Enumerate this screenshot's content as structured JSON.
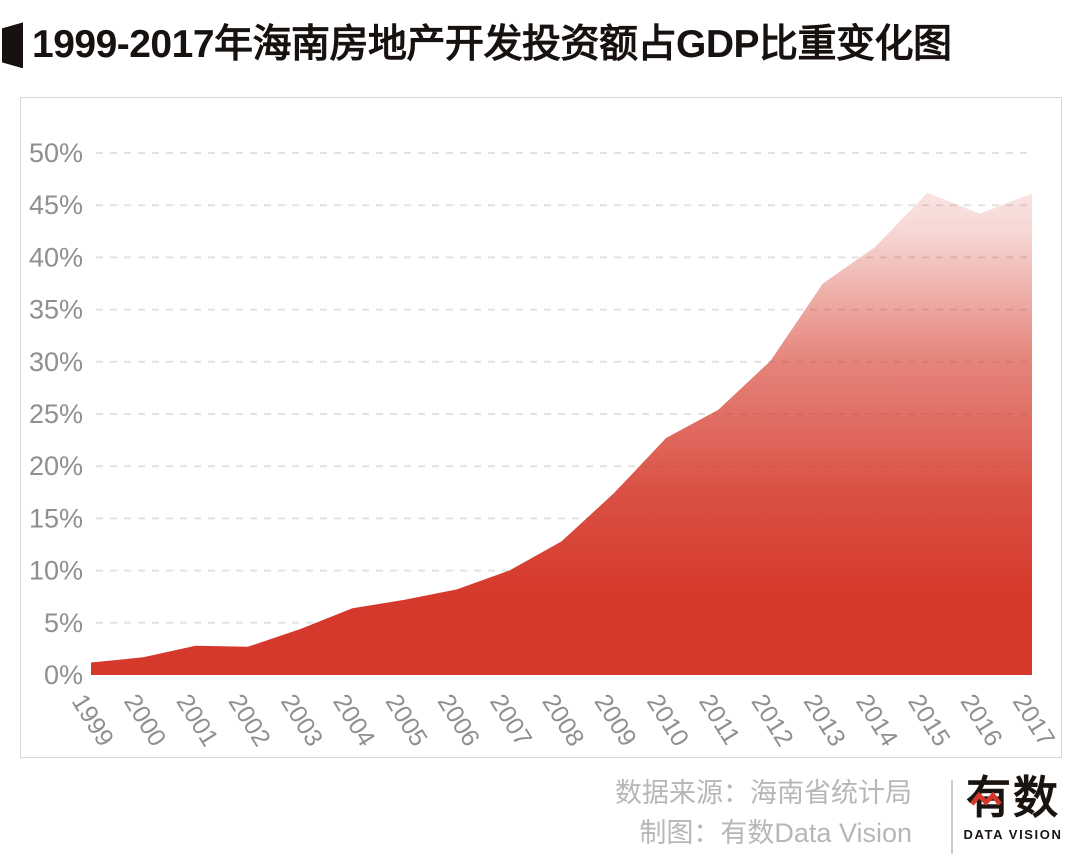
{
  "header": {
    "title": "1999-2017年海南房地产开发投资额占GDP比重变化图"
  },
  "chart_data": {
    "type": "area",
    "title": "1999-2017年海南房地产开发投资额占GDP比重变化图",
    "x": [
      "1999",
      "2000",
      "2001",
      "2002",
      "2003",
      "2004",
      "2005",
      "2006",
      "2007",
      "2008",
      "2009",
      "2010",
      "2011",
      "2012",
      "2013",
      "2014",
      "2015",
      "2016",
      "2017"
    ],
    "series": [
      {
        "name": "房地产开发投资额占GDP比重",
        "values": [
          1.2,
          1.7,
          2.8,
          2.7,
          4.4,
          6.4,
          7.2,
          8.2,
          10.0,
          12.8,
          17.4,
          22.7,
          25.4,
          30.1,
          37.5,
          41.0,
          46.2,
          44.2,
          46.1
        ]
      }
    ],
    "xlabel": "",
    "ylabel": "",
    "ylim": [
      0,
      50
    ],
    "yticks": [
      "0%",
      "5%",
      "10%",
      "15%",
      "20%",
      "25%",
      "30%",
      "35%",
      "40%",
      "45%",
      "50%"
    ],
    "grid": "horizontal-dashed",
    "legend": "none",
    "x_tick_rotation_deg": 58,
    "colors": {
      "area_base": "#d5392b",
      "area_top_fade": "#fbe9e7",
      "gridline": "#e2e2e2",
      "axis_text": "#8f8f8f",
      "panel_border": "#d8d8d8",
      "title_text": "#17120f",
      "footer_text": "#b7b7b7"
    }
  },
  "footer": {
    "source": "数据来源：海南省统计局",
    "credit": "制图：有数Data Vision",
    "logo_char1": "有",
    "logo_char2": "数",
    "logo_subtext": "DATA VISION"
  }
}
